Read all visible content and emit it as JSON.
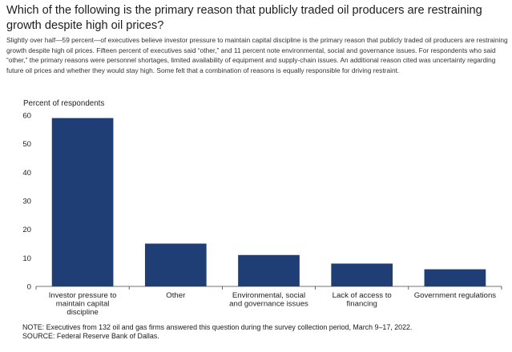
{
  "header": {
    "title": "Which of the following is the primary reason that publicly traded oil producers are restraining growth despite high oil prices?",
    "description": "Slightly over half—59 percent—of executives believe investor pressure to maintain capital discipline is the primary reason that publicly traded oil producers are restraining growth despite high oil prices. Fifteen percent of executives said “other,” and 11 percent note environmental, social and governance issues. For respondents who said “other,” the primary reasons were personnel shortages, limited availability of equipment and supply-chain issues. An additional reason cited was uncertainty regarding future oil prices and whether they would stay high. Some felt that a combination of reasons is equally responsible for driving restraint."
  },
  "chart_data": {
    "type": "bar",
    "title": "",
    "ylabel": "Percent of respondents",
    "xlabel": "",
    "ylim": [
      0,
      60
    ],
    "yticks": [
      0,
      10,
      20,
      30,
      40,
      50,
      60
    ],
    "categories": [
      [
        "Investor pressure to",
        "maintain capital",
        "discipline"
      ],
      [
        "Other"
      ],
      [
        "Environmental, social",
        "and governance issues"
      ],
      [
        "Lack of access to",
        "financing"
      ],
      [
        "Government regulations"
      ]
    ],
    "values": [
      59,
      15,
      11,
      8,
      6
    ],
    "bar_color": "#1f3e76"
  },
  "footer": {
    "note": "NOTE:  Executives  from 132 oil and gas firms answered this question during the survey collection period, March 9–17, 2022.",
    "source": "SOURCE:  Federal Reserve Bank of Dallas."
  }
}
